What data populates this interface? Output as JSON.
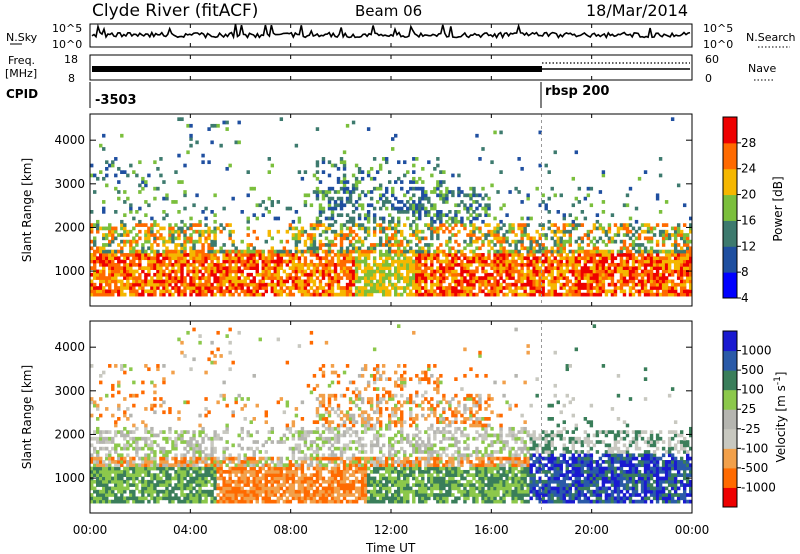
{
  "header": {
    "station": "Clyde River (fitACF)",
    "beam": "Beam 06",
    "date": "18/Mar/2014"
  },
  "nsky_panel": {
    "left_label": "N.Sky",
    "right_label": "N.Search",
    "left_ticks": [
      "10^5",
      "10^0"
    ],
    "right_ticks": [
      "10^5",
      "10^0"
    ]
  },
  "freq_panel": {
    "left_label_1": "Freq.",
    "left_label_2": "[MHz]",
    "right_label": "Nave",
    "left_ticks": [
      "18",
      "8"
    ],
    "right_ticks": [
      "60",
      "0"
    ]
  },
  "cpid_panel": {
    "label": "CPID",
    "program_1": "-3503",
    "program_2": "rbsp 200",
    "switch_hour": 18
  },
  "chart_data": [
    {
      "type": "heatmap",
      "name": "power",
      "ylabel": "Slant Range [km]",
      "xlabel": "Time UT",
      "xlim": [
        0,
        24
      ],
      "ylim": [
        200,
        4600
      ],
      "y_ticks": [
        "1000",
        "2000",
        "3000",
        "4000"
      ],
      "colorbar_label": "Power [dB]",
      "colorbar_ticks": [
        "28",
        "24",
        "20",
        "16",
        "12",
        "8",
        "4"
      ],
      "colors": [
        "#0000ff",
        "#1f4fa0",
        "#3d7a6e",
        "#7bbf3c",
        "#f5b700",
        "#ff6a00",
        "#ee0000"
      ],
      "colorbar_ticks_unit_note": "dB"
    },
    {
      "type": "heatmap",
      "name": "velocity",
      "ylabel": "Slant Range [km]",
      "xlabel": "Time UT",
      "xlim": [
        0,
        24
      ],
      "ylim": [
        200,
        4600
      ],
      "y_ticks": [
        "1000",
        "2000",
        "3000",
        "4000"
      ],
      "colorbar_label": "Velocity [m s",
      "colorbar_label_sup": "-1",
      "colorbar_label_end": "]",
      "colorbar_ticks": [
        "1000",
        "500",
        "100",
        "25",
        "-25",
        "-100",
        "-500",
        "-1000"
      ],
      "colors": [
        "#ee0000",
        "#ff6a00",
        "#f2a04a",
        "#c8c8c0",
        "#b5b5b0",
        "#8cc84b",
        "#3a7e5a",
        "#2a5aa8",
        "#1a1ad0"
      ]
    }
  ],
  "x_ticks": [
    "00:00",
    "04:00",
    "08:00",
    "12:00",
    "16:00",
    "20:00",
    "00:00"
  ]
}
